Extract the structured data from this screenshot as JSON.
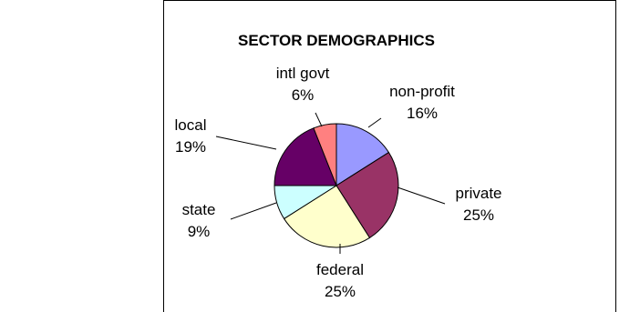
{
  "chart_data": {
    "type": "pie",
    "title": "SECTOR DEMOGRAPHICS",
    "slices": [
      {
        "label": "non-profit",
        "value": 16,
        "value_label": "16%",
        "color": "#9999FF"
      },
      {
        "label": "private",
        "value": 25,
        "value_label": "25%",
        "color": "#993366"
      },
      {
        "label": "federal",
        "value": 25,
        "value_label": "25%",
        "color": "#FFFFCC"
      },
      {
        "label": "state",
        "value": 9,
        "value_label": "9%",
        "color": "#CCFFFF"
      },
      {
        "label": "local",
        "value": 19,
        "value_label": "19%",
        "color": "#660066"
      },
      {
        "label": "intl govt",
        "value": 6,
        "value_label": "6%",
        "color": "#FF8080"
      }
    ],
    "legend": "none"
  }
}
